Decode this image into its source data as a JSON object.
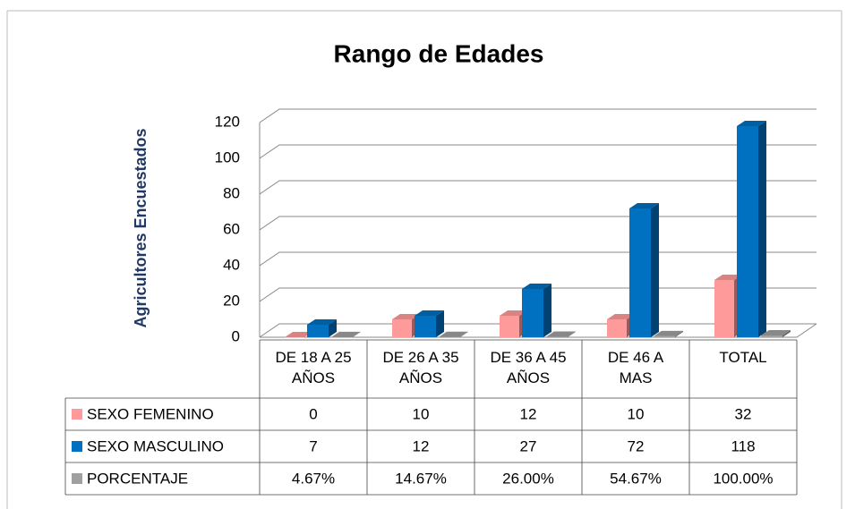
{
  "chart_data": {
    "type": "bar3d",
    "title": "Rango de Edades",
    "y_label": "Agricultores Encuestados",
    "categories": [
      "DE 18 A 25 AÑOS",
      "DE 26 A 35 AÑOS",
      "DE 36 A 45 AÑOS",
      "DE 46 A MAS",
      "TOTAL"
    ],
    "series": [
      {
        "name": "SEXO FEMENINO",
        "color": "#ff9a9a",
        "values": [
          0,
          10,
          12,
          10,
          32
        ]
      },
      {
        "name": "SEXO MASCULINO",
        "color": "#0070c0",
        "values": [
          7,
          12,
          27,
          72,
          118
        ]
      },
      {
        "name": "PORCENTAJE",
        "color": "#a0a0a0",
        "values": [
          0.0467,
          0.1467,
          0.26,
          0.5467,
          1
        ],
        "value_labels": [
          "4.67%",
          "14.67%",
          "26.00%",
          "54.67%",
          "100.00%"
        ]
      }
    ],
    "ylim": [
      0,
      120
    ],
    "yticks": [
      0,
      20,
      40,
      60,
      80,
      100,
      120
    ],
    "grid": true,
    "data_table": true
  }
}
